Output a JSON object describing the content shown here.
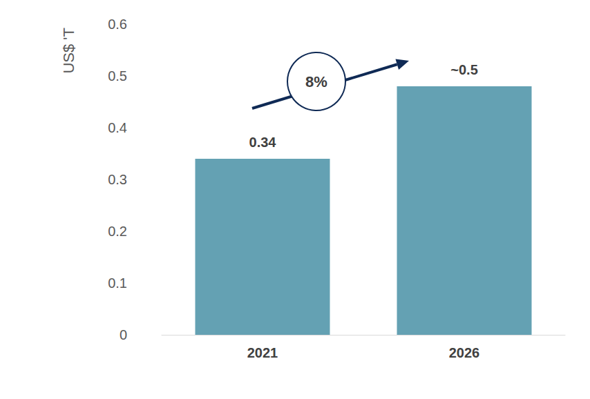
{
  "chart_data": {
    "type": "bar",
    "y_label": "US$ 'T",
    "annotation": "8%",
    "categories": [
      "2021",
      "2026"
    ],
    "values": [
      0.34,
      0.48
    ],
    "value_labels": [
      "0.34",
      "~0.5"
    ],
    "color": "#64a1b3",
    "ylim": [
      0,
      0.6
    ],
    "yticks": [
      0,
      0.1,
      0.2,
      0.3,
      0.4,
      0.5,
      0.6
    ],
    "grid": false,
    "data_labels": true
  }
}
